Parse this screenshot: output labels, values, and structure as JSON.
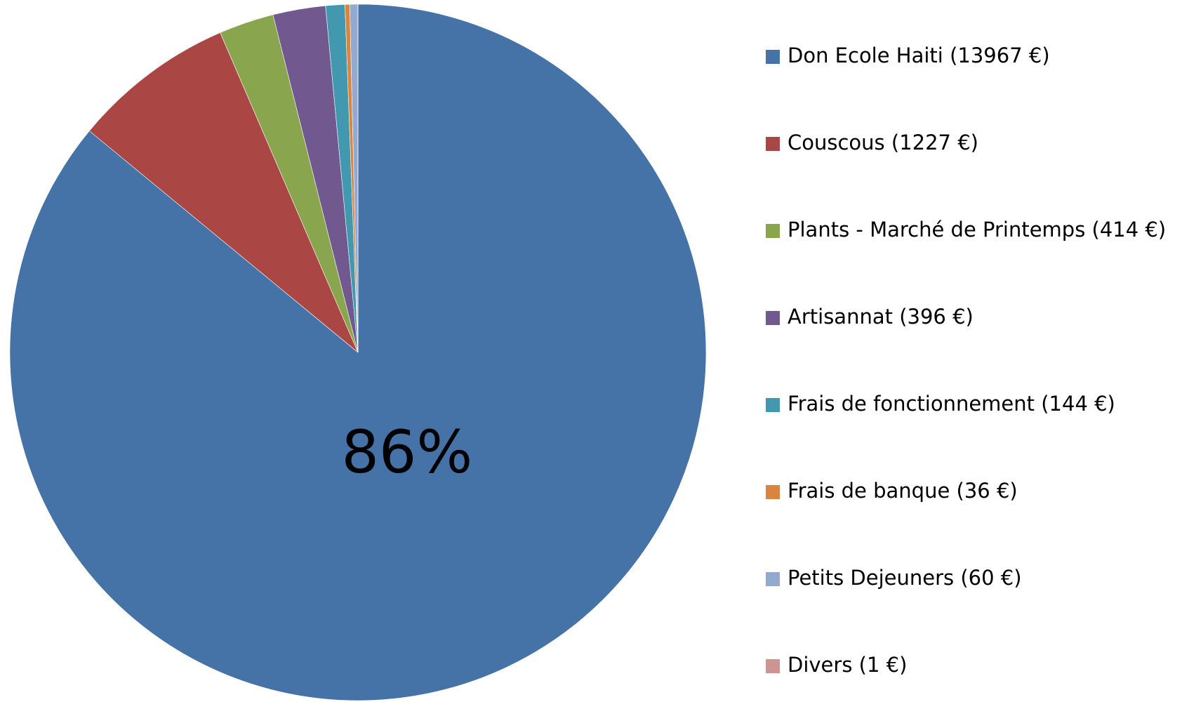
{
  "chart_data": {
    "type": "pie",
    "categories": [
      "Don Ecole Haiti (13967 €)",
      "Couscous (1227  €)",
      "Plants - Marché de Printemps (414 €)",
      "Artisannat (396 €)",
      "Frais de fonctionnement (144 €)",
      "Frais de banque (36 €)",
      "Petits Dejeuners (60 €)",
      "Divers (1 €)"
    ],
    "values": [
      85.98,
      7.55,
      2.55,
      2.44,
      0.89,
      0.22,
      0.37,
      0.006
    ],
    "value_labels": [
      "86%",
      null,
      null,
      null,
      null,
      null,
      null,
      null
    ],
    "colors": [
      "#4572a7",
      "#aa4643",
      "#89a54e",
      "#71588f",
      "#4198af",
      "#db843d",
      "#93a9cf",
      "#d19392"
    ],
    "legend": "right"
  }
}
